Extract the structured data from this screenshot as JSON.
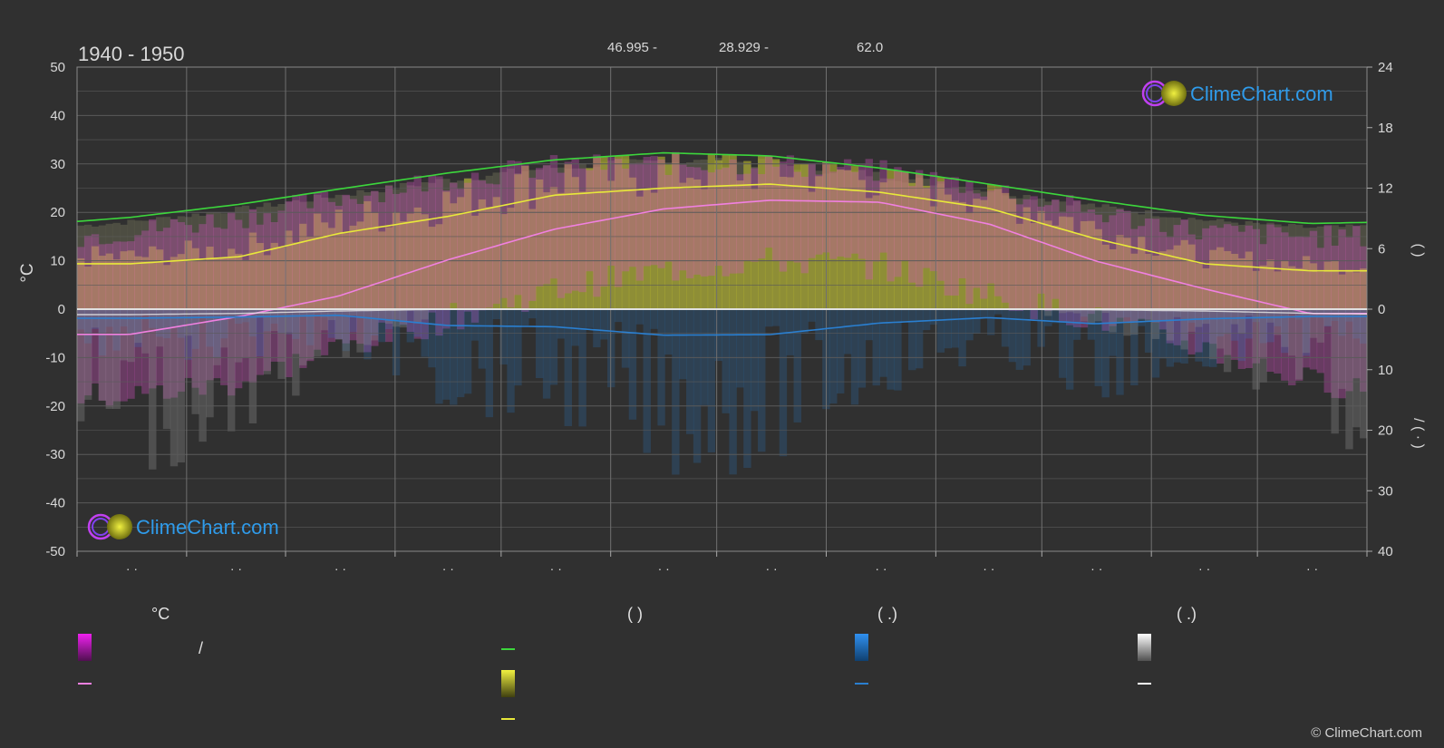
{
  "header": {
    "title": "1940 - 1950",
    "lat": "46.995 -",
    "lon": "28.929 -",
    "elev": "62.0"
  },
  "brand": {
    "logo_text": "ClimeChart.com",
    "copyright": "© ClimeChart.com"
  },
  "axes": {
    "y_left_label": "°C",
    "y_left_ticks": [
      "50",
      "40",
      "30",
      "20",
      "10",
      "0",
      "-10",
      "-20",
      "-30",
      "-40",
      "-50"
    ],
    "y_right_top_ticks": [
      "24",
      "18",
      "12",
      "6",
      "0"
    ],
    "y_right_bottom_ticks": [
      "10",
      "20",
      "30",
      "40"
    ],
    "x_ticks": [
      "· ·",
      "· ·",
      "· ·",
      "· ·",
      "· ·",
      "· ·",
      "· ·",
      "· ·",
      "· ·",
      "· ·",
      "· ·",
      "· ·"
    ],
    "right_label_upper": "(   )",
    "right_label_lower": "/ ( · )"
  },
  "legend": {
    "col1_header": "°C",
    "col1_row1": "/",
    "col2_header": "(            )",
    "col3_header": "(   .)",
    "col4_header": "(   .)"
  },
  "colors": {
    "background": "#303030",
    "grid": "#5a5a5a",
    "daylight": "#3cd63c",
    "sunshine": "#e8e83a",
    "sunshine_fill": "#b0b030",
    "temp_fill": "#d050c0",
    "temp_mean": "#f080e0",
    "rain": "#2a7fd0",
    "snow": "#e8e8e8",
    "zero_line": "#e0e0e0"
  },
  "chart_data": {
    "type": "line",
    "xlim": [
      0,
      365
    ],
    "ylim_temperature": [
      -50,
      50
    ],
    "ylim_hours": [
      0,
      24
    ],
    "ylim_precip_mm": [
      0,
      40
    ],
    "x": [
      0,
      15,
      46,
      74,
      105,
      135,
      166,
      196,
      227,
      258,
      288,
      319,
      349,
      365
    ],
    "series": [
      {
        "key": "daylight",
        "axis": "hours",
        "values": [
          8.7,
          9.1,
          10.4,
          11.9,
          13.5,
          14.8,
          15.5,
          15.2,
          14.0,
          12.4,
          10.8,
          9.3,
          8.5,
          8.6
        ]
      },
      {
        "key": "sunshine",
        "axis": "hours",
        "values": [
          4.5,
          4.5,
          5.2,
          7.5,
          9.2,
          11.3,
          12.0,
          12.4,
          11.6,
          10.0,
          7.0,
          4.5,
          3.8,
          3.8
        ]
      },
      {
        "key": "temp_mean",
        "axis": "temperature",
        "values": [
          -5.2,
          -5.2,
          -1.5,
          2.7,
          10.2,
          16.5,
          20.7,
          22.5,
          22.1,
          17.6,
          10.0,
          4.2,
          -0.9,
          -0.9
        ]
      },
      {
        "key": "temp_max",
        "axis": "temperature",
        "values": [
          15,
          16,
          19,
          23,
          27,
          29.5,
          30,
          30,
          28.5,
          25,
          20,
          16,
          15,
          15
        ]
      },
      {
        "key": "temp_min",
        "axis": "temperature",
        "values": [
          -18,
          -18,
          -15,
          -8,
          -2,
          4,
          8,
          10,
          9,
          3,
          -2,
          -8,
          -15,
          -16
        ]
      },
      {
        "key": "rain",
        "axis": "precip",
        "values": [
          1.5,
          1.5,
          1.3,
          1.0,
          2.7,
          2.9,
          4.3,
          4.2,
          2.3,
          1.4,
          2.4,
          1.6,
          1.2,
          1.2
        ]
      },
      {
        "key": "snow",
        "axis": "precip",
        "values": [
          0.9,
          0.9,
          0.7,
          0.3,
          0,
          0,
          0,
          0,
          0,
          0,
          0.1,
          0.3,
          0.7,
          0.8
        ]
      }
    ]
  }
}
